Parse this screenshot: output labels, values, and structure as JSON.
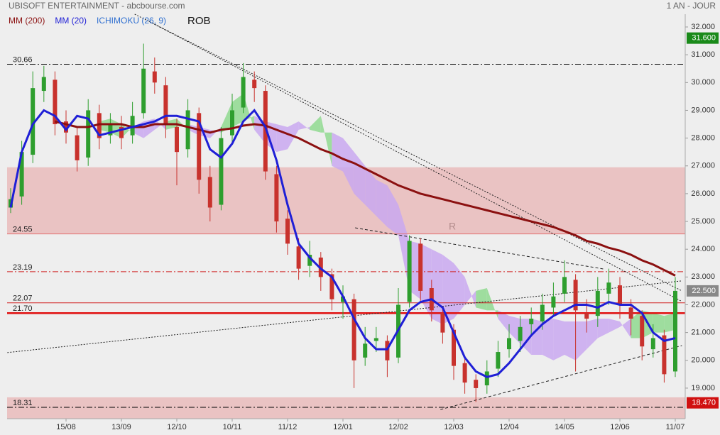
{
  "chart_data": {
    "type": "candlestick",
    "title": "UBISOFT ENTERTAINMENT - abcbourse.com",
    "period": "1 AN - JOUR",
    "annotations": [
      "ROB",
      "R"
    ],
    "ylim": [
      17.9,
      32.46
    ],
    "yticks": [
      {
        "value": 19,
        "label": "19.000"
      },
      {
        "value": 20,
        "label": "20.000"
      },
      {
        "value": 21,
        "label": "21.000"
      },
      {
        "value": 22,
        "label": "22.000"
      },
      {
        "value": 23,
        "label": "23.000"
      },
      {
        "value": 24,
        "label": "24.000"
      },
      {
        "value": 25,
        "label": "25.000"
      },
      {
        "value": 26,
        "label": "26.000"
      },
      {
        "value": 27,
        "label": "27.000"
      },
      {
        "value": 28,
        "label": "28.000"
      },
      {
        "value": 29,
        "label": "29.000"
      },
      {
        "value": 30,
        "label": "30.000"
      },
      {
        "value": 31,
        "label": "31.000"
      },
      {
        "value": 32,
        "label": "32.000"
      }
    ],
    "categories": [
      null,
      null,
      null,
      null,
      null,
      "15/08",
      null,
      null,
      null,
      null,
      "13/09",
      null,
      null,
      null,
      null,
      "12/10",
      null,
      null,
      null,
      null,
      "10/11",
      null,
      null,
      null,
      null,
      "11/12",
      null,
      null,
      null,
      null,
      "12/01",
      null,
      null,
      null,
      null,
      "12/02",
      null,
      null,
      null,
      null,
      "12/03",
      null,
      null,
      null,
      null,
      "12/04",
      null,
      null,
      null,
      null,
      "14/05",
      null,
      null,
      null,
      null,
      "12/06",
      null,
      null,
      null,
      null,
      "11/07"
    ],
    "candles": {
      "up_color": "#2e9e2e",
      "down_color": "#c8322d",
      "open": [
        25.5,
        25.9,
        27.4,
        29.7,
        30.1,
        28.6,
        28.1,
        27.3,
        28.9,
        28.1,
        28.4,
        28.1,
        28.9,
        30.4,
        29.9,
        28.4,
        27.6,
        28.9,
        26.6,
        25.6,
        28.1,
        29.1,
        30.1,
        29.7,
        26.7,
        25.1,
        24.1,
        23.4,
        23.7,
        23.1,
        22.1,
        22.2,
        20.1,
        20.7,
        20.7,
        20.1,
        22.1,
        24.2,
        22.6,
        21.7,
        21.1,
        19.9,
        19.3,
        19.1,
        19.7,
        20.4,
        20.7,
        21.3,
        21.4,
        21.9,
        22.4,
        22.9,
        21.7,
        21.6,
        22.4,
        22.7,
        21.9,
        21.6,
        20.4,
        20.9,
        19.6
      ],
      "high": [
        26.2,
        27.9,
        30.4,
        30.6,
        30.4,
        29.0,
        28.4,
        29.4,
        29.2,
        28.9,
        28.8,
        29.3,
        31.4,
        30.9,
        30.2,
        28.7,
        29.4,
        29.1,
        27.0,
        28.4,
        29.6,
        30.7,
        30.4,
        29.9,
        27.0,
        25.4,
        24.4,
        24.3,
        23.9,
        23.3,
        22.7,
        22.4,
        21.2,
        21.2,
        20.9,
        22.6,
        24.5,
        24.4,
        22.9,
        21.9,
        21.3,
        20.1,
        19.5,
        20.0,
        20.7,
        21.3,
        21.6,
        21.9,
        22.4,
        22.8,
        23.6,
        23.1,
        22.2,
        23.0,
        23.3,
        23.0,
        22.2,
        21.8,
        21.3,
        21.1,
        23.0
      ],
      "low": [
        25.3,
        25.6,
        27.1,
        29.3,
        28.1,
        27.8,
        26.8,
        27.0,
        27.6,
        27.8,
        27.6,
        27.8,
        28.7,
        29.6,
        28.0,
        26.3,
        27.3,
        26.0,
        25.0,
        25.4,
        27.8,
        28.9,
        29.3,
        26.5,
        24.6,
        23.8,
        22.9,
        23.0,
        22.5,
        21.8,
        21.5,
        19.0,
        19.8,
        20.3,
        19.4,
        19.9,
        21.9,
        22.1,
        21.4,
        20.6,
        19.3,
        18.8,
        18.5,
        18.8,
        19.4,
        20.1,
        20.3,
        20.9,
        21.1,
        21.6,
        22.1,
        19.6,
        21.0,
        21.2,
        22.0,
        21.5,
        20.9,
        20.0,
        20.1,
        19.2,
        19.4
      ],
      "close": [
        25.8,
        27.5,
        29.8,
        30.2,
        28.5,
        28.2,
        27.2,
        29.0,
        28.0,
        28.5,
        28.0,
        28.8,
        30.5,
        30.0,
        28.5,
        27.5,
        29.0,
        26.5,
        25.5,
        28.0,
        29.0,
        30.2,
        29.8,
        26.8,
        25.0,
        24.2,
        23.3,
        23.8,
        23.0,
        22.2,
        22.3,
        20.0,
        20.6,
        20.8,
        20.0,
        22.0,
        24.3,
        22.5,
        21.8,
        21.0,
        19.8,
        19.2,
        19.0,
        19.6,
        20.3,
        20.8,
        21.2,
        21.5,
        22.0,
        22.3,
        23.0,
        21.8,
        21.5,
        22.5,
        22.8,
        22.0,
        21.5,
        20.5,
        20.8,
        19.5,
        22.5
      ]
    },
    "series": [
      {
        "name": "MM (200)",
        "color": "#8b1010",
        "width": 3,
        "values": [
          null,
          null,
          null,
          null,
          28.6,
          28.5,
          28.4,
          28.4,
          28.5,
          28.5,
          28.5,
          28.4,
          28.4,
          28.5,
          28.5,
          28.5,
          28.4,
          28.3,
          28.2,
          28.3,
          28.35,
          28.45,
          28.5,
          28.45,
          28.3,
          28.15,
          28.0,
          27.8,
          27.6,
          27.45,
          27.25,
          27.1,
          26.9,
          26.7,
          26.5,
          26.3,
          26.15,
          26.0,
          25.9,
          25.8,
          25.7,
          25.6,
          25.5,
          25.4,
          25.3,
          25.2,
          25.1,
          25.0,
          24.9,
          24.8,
          24.65,
          24.5,
          24.3,
          24.2,
          24.05,
          23.95,
          23.8,
          23.6,
          23.45,
          23.25,
          23.05
        ]
      },
      {
        "name": "MM (20)",
        "color": "#1f1fd6",
        "width": 3,
        "values": [
          25.5,
          27.5,
          28.5,
          29.0,
          28.8,
          28.3,
          28.8,
          28.7,
          28.1,
          28.2,
          28.3,
          28.4,
          28.5,
          28.6,
          28.8,
          28.8,
          28.7,
          28.6,
          27.6,
          27.3,
          27.8,
          28.6,
          29.0,
          28.4,
          27.2,
          25.6,
          24.2,
          23.7,
          23.3,
          23.0,
          22.3,
          21.5,
          20.8,
          20.4,
          20.4,
          21.1,
          21.8,
          22.1,
          22.2,
          21.9,
          21.0,
          20.1,
          19.6,
          19.4,
          19.5,
          19.9,
          20.4,
          20.9,
          21.3,
          21.6,
          21.8,
          22.0,
          22.0,
          21.9,
          22.1,
          22.0,
          22.0,
          21.7,
          21.0,
          20.7,
          20.8
        ]
      }
    ],
    "ichimoku": {
      "name": "ICHIMOKU (26, 9)",
      "color": "#2f6fd0",
      "up_color": "#8fd98f",
      "down_color": "#c9a8f0",
      "span_a": [
        null,
        null,
        null,
        null,
        null,
        null,
        null,
        null,
        28.6,
        28.7,
        28.5,
        28.2,
        28.0,
        28.3,
        28.6,
        28.7,
        28.3,
        28.1,
        28.0,
        28.4,
        29.3,
        29.6,
        28.3,
        27.8,
        27.5,
        27.6,
        28.3,
        28.4,
        28.8,
        27.0,
        26.8,
        26.0,
        25.6,
        25.2,
        24.8,
        24.5,
        22.5,
        22.2,
        21.5,
        21.3,
        21.5,
        22.0,
        22.5,
        22.6,
        21.5,
        21.0,
        20.6,
        20.2,
        20.2,
        20.0,
        20.2,
        20.0,
        20.4,
        20.8,
        21.0,
        21.2,
        21.5,
        21.8,
        21.7,
        21.6,
        21.7
      ],
      "span_b": [
        null,
        null,
        null,
        null,
        null,
        null,
        null,
        null,
        28.3,
        28.2,
        28.0,
        28.4,
        28.6,
        28.7,
        28.3,
        28.4,
        28.5,
        28.4,
        28.3,
        28.2,
        28.4,
        28.6,
        28.8,
        28.6,
        28.5,
        28.4,
        28.6,
        28.3,
        28.2,
        28.2,
        28.0,
        27.5,
        27.0,
        26.5,
        26.3,
        25.6,
        24.3,
        24.2,
        24.0,
        23.8,
        23.5,
        23.0,
        21.9,
        21.8,
        21.8,
        21.6,
        21.5,
        21.5,
        21.4,
        21.5,
        21.4,
        21.4,
        21.4,
        21.5,
        21.5,
        21.4,
        20.8,
        20.8,
        21.0,
        21.0,
        21.1
      ]
    },
    "zones": [
      {
        "from": 24.55,
        "to": 26.95,
        "color": "#e8b4b4"
      },
      {
        "from": 17.9,
        "to": 18.67,
        "color": "#e8b4b4"
      }
    ],
    "levels": [
      {
        "value": 30.66,
        "label": "30.66",
        "color": "#000000",
        "style": "dashdot",
        "width": 1
      },
      {
        "value": 24.55,
        "label": "24.55",
        "color": "#e07070",
        "style": "solid",
        "width": 1
      },
      {
        "value": 23.19,
        "label": "23.19",
        "color": "#d02020",
        "style": "dashdot",
        "width": 1
      },
      {
        "value": 22.07,
        "label": "22.07",
        "color": "#d02020",
        "style": "solid",
        "width": 1
      },
      {
        "value": 21.7,
        "label": "21.70",
        "color": "#e01010",
        "style": "solid",
        "width": 2.5
      },
      {
        "value": 18.31,
        "label": "18.31",
        "color": "#000000",
        "style": "dashdot",
        "width": 1
      }
    ],
    "trendlines": [
      {
        "x": [
          11.2,
          60.6
        ],
        "y": [
          32.46,
          22.5
        ],
        "style": "dotted"
      },
      {
        "x": [
          12.5,
          60.6
        ],
        "y": [
          32.2,
          22.12
        ],
        "style": "dotted"
      },
      {
        "x": [
          -0.3,
          60.6
        ],
        "y": [
          20.28,
          22.86
        ],
        "style": "dotted"
      },
      {
        "x": [
          31.1,
          53.5
        ],
        "y": [
          24.77,
          23.29
        ],
        "style": "dashed"
      },
      {
        "x": [
          38.8,
          60.6
        ],
        "y": [
          18.23,
          20.53
        ],
        "style": "dashed"
      }
    ],
    "price_tags": [
      {
        "value": 31.6,
        "label": "31.600",
        "color": "#1a8a1a"
      },
      {
        "value": 22.5,
        "label": "22.500",
        "color": "#888888"
      },
      {
        "value": 18.47,
        "label": "18.470",
        "color": "#d01010"
      }
    ]
  }
}
